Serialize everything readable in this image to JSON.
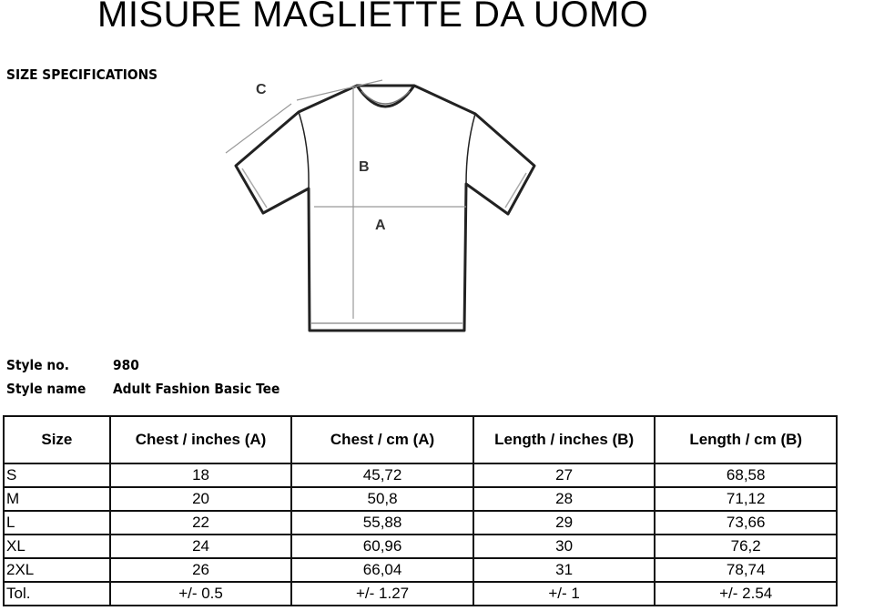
{
  "title": "MISURE MAGLIETTE DA UOMO",
  "section_label": "SIZE SPECIFICATIONS",
  "diagram_labels": {
    "a": "A",
    "b": "B",
    "c": "C"
  },
  "style": {
    "no_label": "Style no.",
    "no_value": "980",
    "name_label": "Style name",
    "name_value": "Adult Fashion Basic Tee"
  },
  "table": {
    "headers": [
      "Size",
      "Chest / inches (A)",
      "Chest / cm (A)",
      "Length / inches (B)",
      "Length / cm (B)"
    ],
    "rows": [
      [
        "S",
        "18",
        "45,72",
        "27",
        "68,58"
      ],
      [
        "M",
        "20",
        "50,8",
        "28",
        "71,12"
      ],
      [
        "L",
        "22",
        "55,88",
        "29",
        "73,66"
      ],
      [
        "XL",
        "24",
        "60,96",
        "30",
        "76,2"
      ],
      [
        "2XL",
        "26",
        "66,04",
        "31",
        "78,74"
      ],
      [
        "Tol.",
        "+/- 0.5",
        "+/- 1.27",
        "+/- 1",
        "+/- 2.54"
      ]
    ]
  }
}
